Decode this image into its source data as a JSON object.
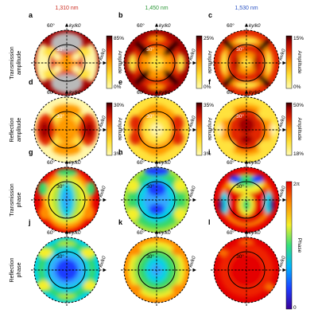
{
  "columns": [
    {
      "wavelength": "1,310 nm",
      "color": "#cc2a1e"
    },
    {
      "wavelength": "1,450 nm",
      "color": "#2f9a3a"
    },
    {
      "wavelength": "1,530 nm",
      "color": "#2d55c4"
    }
  ],
  "row_labels": [
    {
      "line1": "Transmission",
      "line2": "amplitude"
    },
    {
      "line1": "Reflection",
      "line2": "amplitude"
    },
    {
      "line1": "Transmission",
      "line2": "phase"
    },
    {
      "line1": "Reflection",
      "line2": "phase"
    }
  ],
  "panels": [
    {
      "letter": "a",
      "row": 0,
      "col": 0,
      "cbar": {
        "max": "85%",
        "min": "0%",
        "label": "Amplitude"
      }
    },
    {
      "letter": "b",
      "row": 0,
      "col": 1,
      "cbar": {
        "max": "25%",
        "min": "0%",
        "label": "Amplitude"
      }
    },
    {
      "letter": "c",
      "row": 0,
      "col": 2,
      "cbar": {
        "max": "15%",
        "min": "0%",
        "label": "Amplitude"
      }
    },
    {
      "letter": "d",
      "row": 1,
      "col": 0,
      "cbar": {
        "max": "30%",
        "min": "3%",
        "label": "Amplitude"
      }
    },
    {
      "letter": "e",
      "row": 1,
      "col": 1,
      "cbar": {
        "max": "35%",
        "min": "3%",
        "label": "Amplitude"
      }
    },
    {
      "letter": "f",
      "row": 1,
      "col": 2,
      "cbar": {
        "max": "50%",
        "min": "18%",
        "label": "Amplitude"
      }
    },
    {
      "letter": "g",
      "row": 2,
      "col": 0,
      "cbar": null
    },
    {
      "letter": "h",
      "row": 2,
      "col": 1,
      "cbar": null
    },
    {
      "letter": "i",
      "row": 2,
      "col": 2,
      "cbar": {
        "max": "2π",
        "min": "0",
        "label": "Phase"
      }
    },
    {
      "letter": "j",
      "row": 3,
      "col": 0,
      "cbar": null
    },
    {
      "letter": "k",
      "row": 3,
      "col": 1,
      "cbar": null
    },
    {
      "letter": "l",
      "row": 3,
      "col": 2,
      "cbar": null
    }
  ],
  "polar_labels": {
    "outer_angle": "60°",
    "inner_angle": "30°",
    "ky_label": "ky/k0",
    "kx_label": "kx/k0"
  },
  "colors": {
    "amplitude_scale": [
      "#fff9b8",
      "#ffe240",
      "#ff9a00",
      "#e12800",
      "#a00000",
      "#2a0000"
    ],
    "phase_scale": [
      "#3a0096",
      "#1d3cff",
      "#00b4ff",
      "#36e07a",
      "#f4ef2a",
      "#ff8c00",
      "#e40000"
    ]
  }
}
